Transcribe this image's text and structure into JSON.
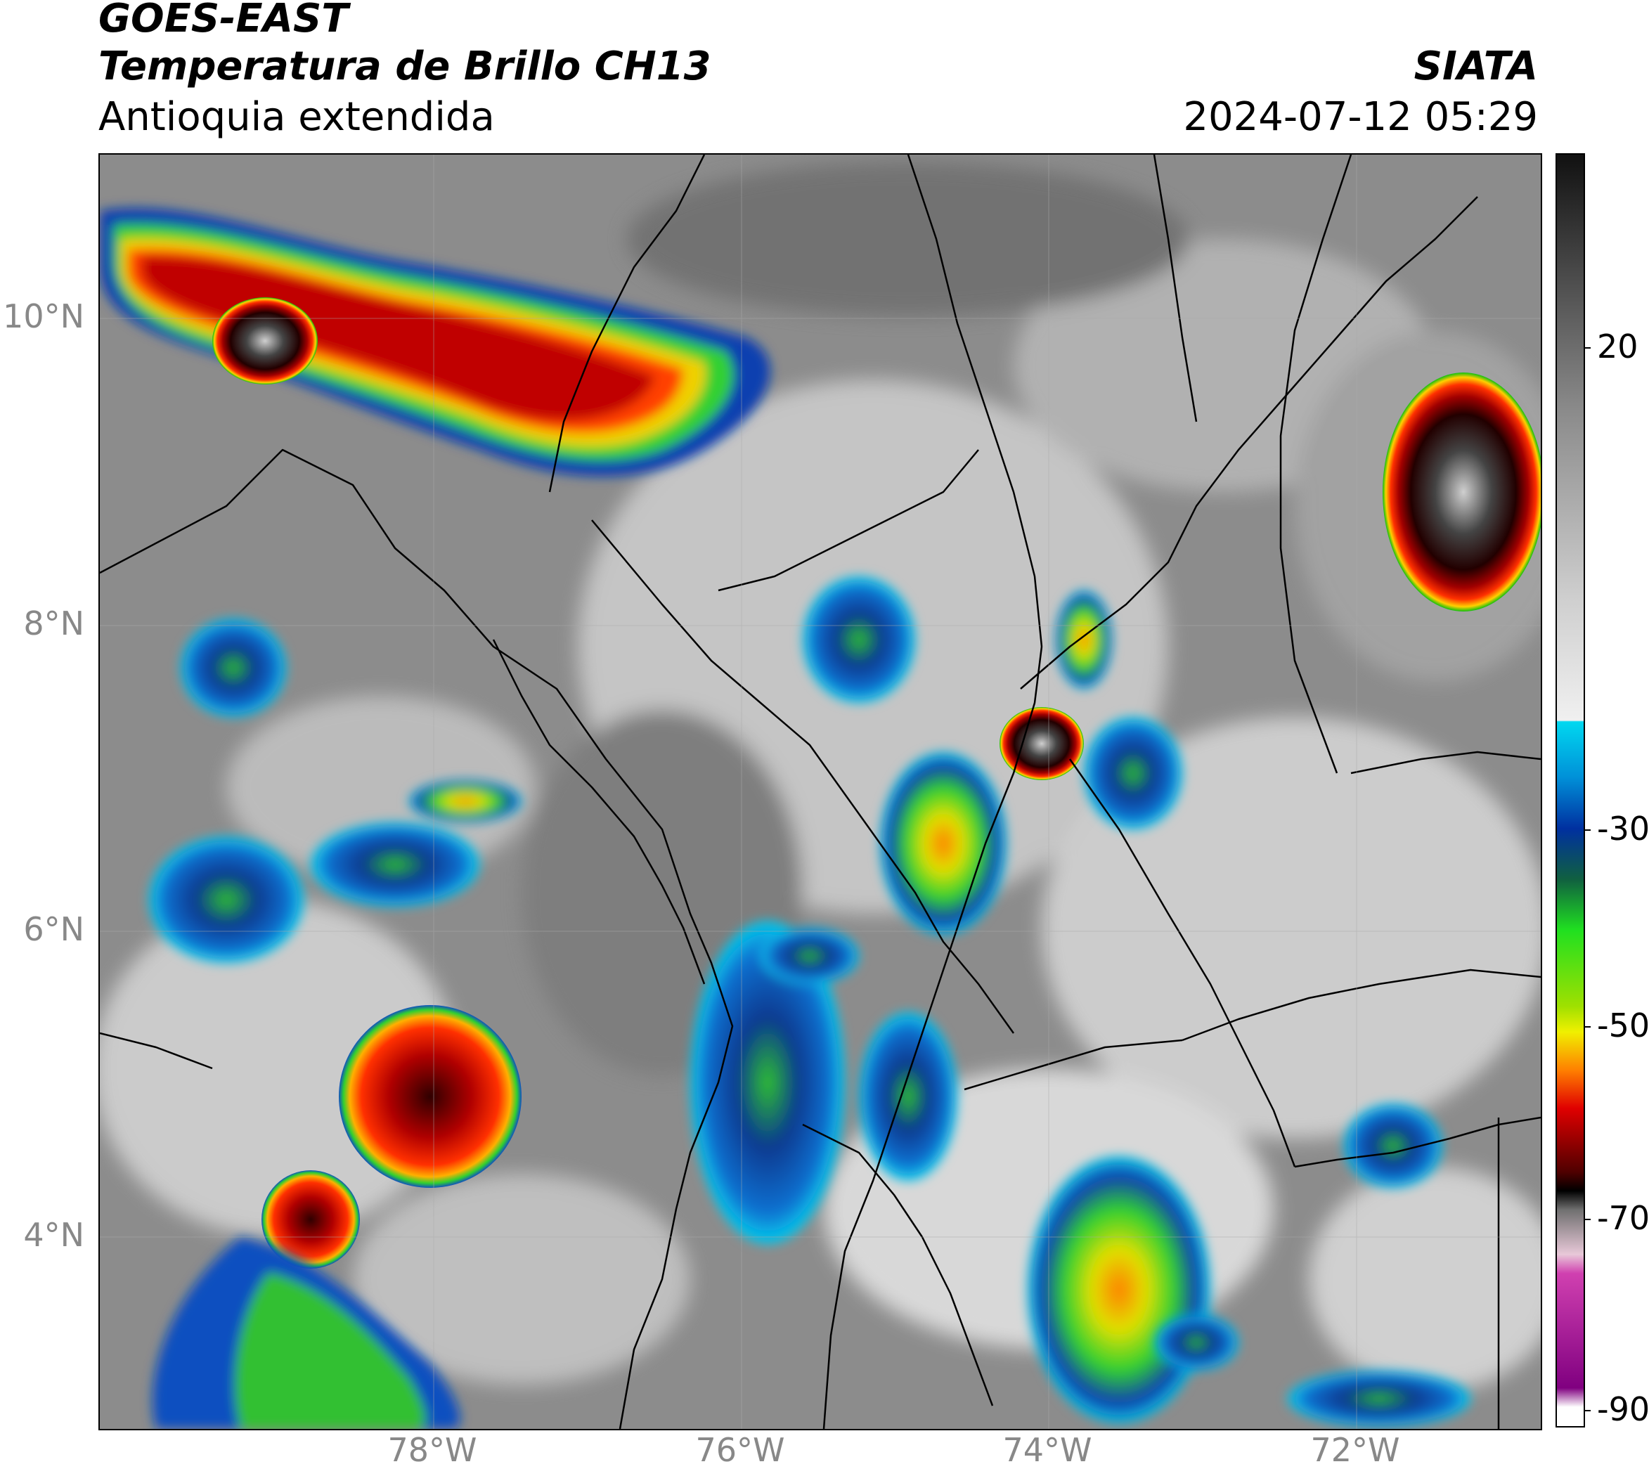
{
  "header": {
    "satellite": "GOES-EAST",
    "product": "Temperatura de Brillo CH13",
    "region": "Antioquia extendida",
    "organization": "SIATA",
    "datetime": "2024-07-12 05:29"
  },
  "axes": {
    "y_ticks": [
      "10°N",
      "8°N",
      "6°N",
      "4°N"
    ],
    "x_ticks": [
      "78°W",
      "76°W",
      "74°W",
      "72°W"
    ]
  },
  "colorbar": {
    "ticks": [
      "20",
      "-30",
      "-50",
      "-70",
      "-90"
    ],
    "scale": "brightness temperature (°C), top = warm, bottom = cold",
    "colors": {
      "warm_dark": "#111111",
      "mid_gray": "#8a8a8a",
      "light": "#f0f0f0",
      "cyan": "#00d8f0",
      "blue": "#0030a0",
      "green": "#20e020",
      "yellow": "#f0f000",
      "orange": "#ff8000",
      "red": "#e00000",
      "dark_red": "#500000",
      "black": "#000000",
      "pale_pink": "#e8c8d8",
      "magenta": "#d040b0",
      "purple": "#800080"
    }
  },
  "map_layers": {
    "background": "cloud-free gray (warm surface)",
    "features": [
      "convective storm cores",
      "cloud bands",
      "political boundaries"
    ]
  }
}
